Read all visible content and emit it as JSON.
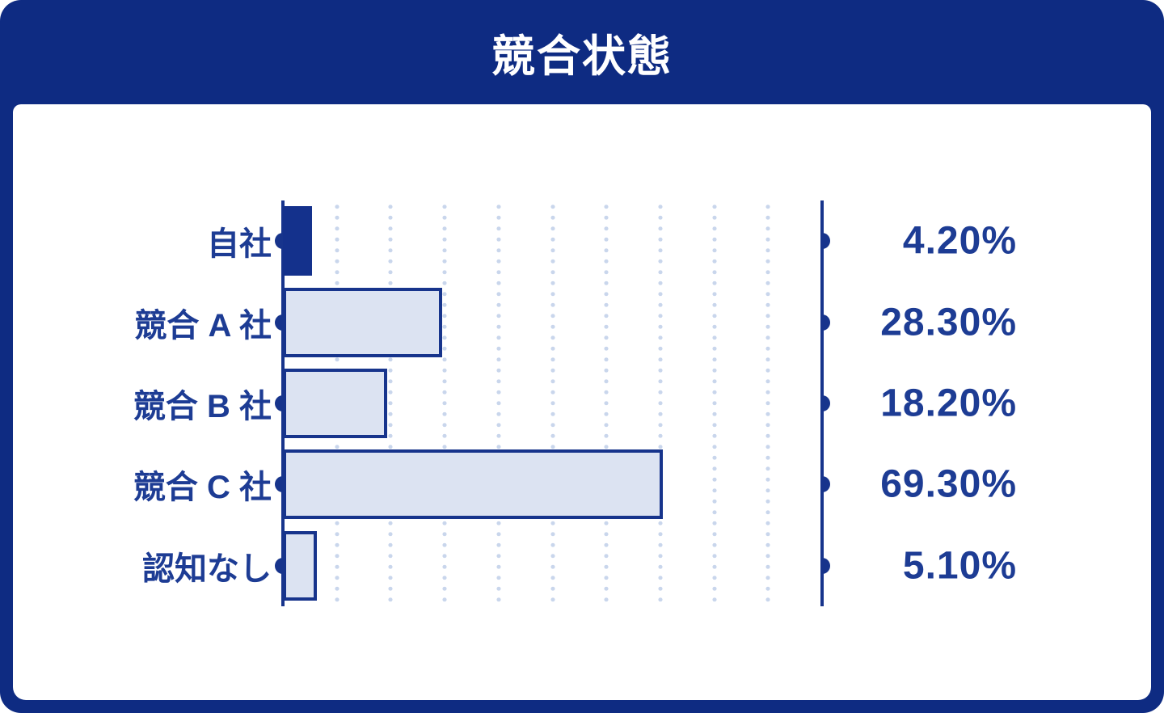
{
  "header": {
    "title": "競合状態"
  },
  "chart_data": {
    "type": "bar",
    "orientation": "horizontal",
    "title": "競合状態",
    "categories": [
      "自社",
      "競合 A 社",
      "競合 B 社",
      "競合 C 社",
      "認知なし"
    ],
    "values": [
      4.2,
      28.3,
      18.2,
      69.3,
      5.1
    ],
    "value_labels": [
      "4.20%",
      "28.30%",
      "18.20%",
      "69.30%",
      "5.10%"
    ],
    "xlim": [
      0,
      100
    ],
    "gridline_step_pct": 10,
    "grid": "vertical-dotted",
    "legend": "none",
    "highlight_index": 0,
    "colors": {
      "frame_navy": "#0E2B82",
      "element_navy": "#17348C",
      "text_navy": "#1D3C94",
      "bar_fill_light": "#DCE3F2",
      "bar_fill_solid": "#14318C",
      "gridline_dot": "#C9D6EC",
      "panel_white": "#FFFFFF",
      "title_white": "#FFFFFF"
    }
  }
}
